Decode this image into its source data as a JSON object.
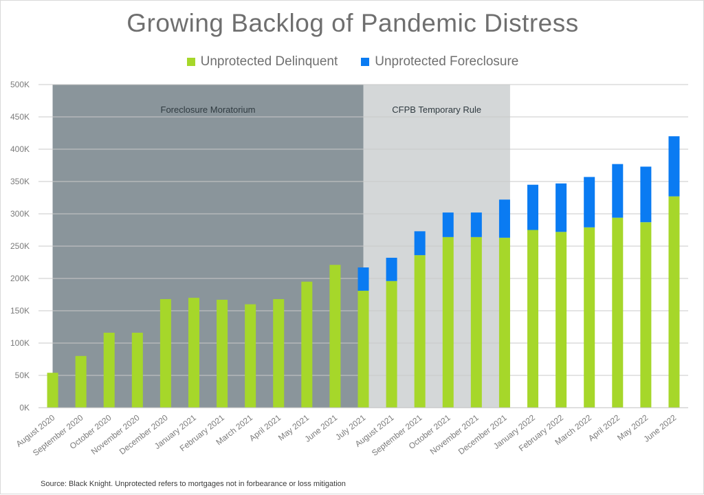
{
  "title": "Growing Backlog of Pandemic Distress",
  "source": "Source: Black Knight. Unprotected refers to mortgages not in forbearance or loss mitigation",
  "colors": {
    "delinquent": "#a6d72a",
    "foreclosure": "#0a7bf2",
    "moratorium_band": "#8a959b",
    "cfpb_band": "#d4d7d8",
    "text": "#6f6f6f",
    "grid": "#c9c9c9"
  },
  "legend": [
    {
      "label": "Unprotected Delinquent",
      "color": "#a6d72a"
    },
    {
      "label": "Unprotected Foreclosure",
      "color": "#0a7bf2"
    }
  ],
  "chart_data": {
    "type": "bar",
    "stacked": true,
    "title": "Growing Backlog of Pandemic Distress",
    "categories": [
      "August 2020",
      "September 2020",
      "October 2020",
      "November 2020",
      "December 2020",
      "January 2021",
      "February 2021",
      "March 2021",
      "April 2021",
      "May 2021",
      "June 2021",
      "July 2021",
      "August 2021",
      "September 2021",
      "October 2021",
      "November 2021",
      "December 2021",
      "January 2022",
      "February 2022",
      "March 2022",
      "April 2022",
      "May 2022",
      "June 2022"
    ],
    "series": [
      {
        "name": "Unprotected Delinquent",
        "values": [
          54000,
          80000,
          116000,
          116000,
          168000,
          170000,
          167000,
          160000,
          168000,
          195000,
          221000,
          181000,
          196000,
          236000,
          264000,
          264000,
          263000,
          275000,
          272000,
          279000,
          294000,
          287000,
          327000
        ]
      },
      {
        "name": "Unprotected Foreclosure",
        "values": [
          0,
          0,
          0,
          0,
          0,
          0,
          0,
          0,
          0,
          0,
          0,
          36000,
          36000,
          37000,
          38000,
          38000,
          59000,
          70000,
          75000,
          78000,
          83000,
          86000,
          93000
        ]
      }
    ],
    "yticks": [
      0,
      50000,
      100000,
      150000,
      200000,
      250000,
      300000,
      350000,
      400000,
      450000,
      500000
    ],
    "ytick_labels": [
      "0K",
      "50K",
      "100K",
      "150K",
      "200K",
      "250K",
      "300K",
      "350K",
      "400K",
      "450K",
      "500K"
    ],
    "ylim": [
      0,
      500000
    ],
    "grid": true,
    "legend_position": "top",
    "annotations": [
      {
        "label": "Foreclosure Moratorium",
        "from": "August 2020",
        "to": "July 2021"
      },
      {
        "label": "CFPB Temporary Rule",
        "from": "July 2021",
        "to": "December 2021"
      }
    ]
  }
}
